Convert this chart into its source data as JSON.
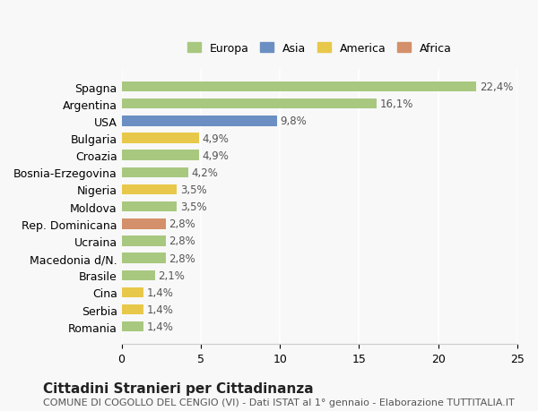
{
  "countries": [
    "Romania",
    "Serbia",
    "Cina",
    "Brasile",
    "Macedonia d/N.",
    "Ucraina",
    "Rep. Dominicana",
    "Moldova",
    "Nigeria",
    "Bosnia-Erzegovina",
    "Croazia",
    "Bulgaria",
    "USA",
    "Argentina",
    "Spagna"
  ],
  "values": [
    22.4,
    16.1,
    9.8,
    4.9,
    4.9,
    4.2,
    3.5,
    3.5,
    2.8,
    2.8,
    2.8,
    2.1,
    1.4,
    1.4,
    1.4
  ],
  "bar_colors": [
    "#a8c880",
    "#a8c880",
    "#6b8fc2",
    "#e8c84a",
    "#a8c880",
    "#a8c880",
    "#e8c84a",
    "#a8c880",
    "#d4906a",
    "#a8c880",
    "#a8c880",
    "#a8c880",
    "#e8c84a",
    "#e8c84a",
    "#a8c880"
  ],
  "legend_labels": [
    "Europa",
    "Asia",
    "America",
    "Africa"
  ],
  "legend_colors": [
    "#a8c880",
    "#6b8fc2",
    "#e8c84a",
    "#d4906a"
  ],
  "title": "Cittadini Stranieri per Cittadinanza",
  "subtitle": "COMUNE DI COGOLLO DEL CENGIO (VI) - Dati ISTAT al 1° gennaio - Elaborazione TUTTITALIA.IT",
  "xlim": [
    0,
    25
  ],
  "xticks": [
    0,
    5,
    10,
    15,
    20,
    25
  ],
  "background_color": "#f8f8f8",
  "bar_label_fontsize": 8.5,
  "axis_label_fontsize": 9,
  "title_fontsize": 11,
  "subtitle_fontsize": 8
}
